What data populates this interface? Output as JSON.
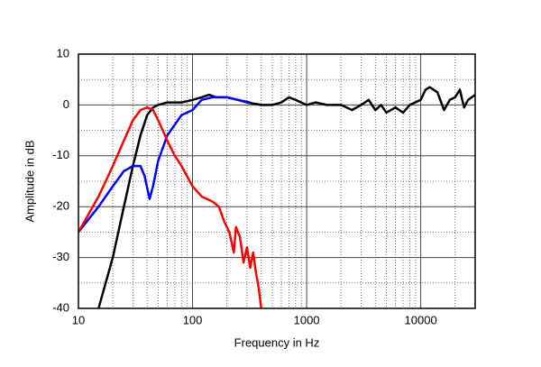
{
  "chart_data": {
    "type": "line",
    "x_label": "Frequency in Hz",
    "y_label": "Amplitude in dB",
    "xscale": "log",
    "grid": true,
    "xlim": [
      10,
      30000
    ],
    "xticks": [
      10,
      100,
      1000,
      10000
    ],
    "ylim": [
      -40,
      10
    ],
    "yticks": [
      -40,
      -30,
      -20,
      -10,
      0,
      10
    ],
    "series": [
      {
        "color": "#000000",
        "x": [
          15,
          20,
          25,
          30,
          35,
          40,
          45,
          50,
          60,
          80,
          100,
          120,
          140,
          160,
          200,
          250,
          300,
          400,
          500,
          600,
          700,
          800,
          1000,
          1200,
          1500,
          2000,
          2500,
          3000,
          3500,
          4000,
          4500,
          5000,
          6000,
          7000,
          8000,
          10000,
          11000,
          12000,
          14000,
          16000,
          18000,
          20000,
          22000,
          24000,
          26000,
          28000,
          30000
        ],
        "values": [
          -40,
          -30,
          -20,
          -12,
          -6,
          -2,
          -0.5,
          0,
          0.5,
          0.5,
          1,
          1.5,
          2,
          1.5,
          1.5,
          1,
          0.5,
          0,
          0,
          0.5,
          1.5,
          1,
          0,
          0.5,
          0,
          0,
          -1,
          0,
          1,
          -1,
          0,
          -1.5,
          -0.5,
          -1.5,
          0,
          1,
          3,
          3.5,
          2.5,
          -1,
          1,
          1.5,
          3,
          -0.5,
          1,
          1.5,
          2
        ]
      },
      {
        "color": "#0000ff",
        "x": [
          10,
          15,
          20,
          25,
          30,
          35,
          38,
          42,
          45,
          50,
          60,
          80,
          100,
          120,
          150,
          200,
          250,
          320
        ],
        "values": [
          -25,
          -20,
          -16,
          -13,
          -12,
          -12,
          -14,
          -18.5,
          -16,
          -11,
          -6,
          -2,
          -1,
          1,
          1.5,
          1.5,
          1,
          0.5
        ]
      },
      {
        "color": "#ff0000",
        "x": [
          10,
          15,
          20,
          25,
          30,
          35,
          40,
          45,
          50,
          60,
          70,
          80,
          100,
          120,
          150,
          170,
          190,
          210,
          230,
          240,
          260,
          280,
          300,
          320,
          340,
          360,
          380,
          400
        ],
        "values": [
          -25,
          -18,
          -12,
          -7,
          -3,
          -1,
          -0.5,
          -1,
          -3,
          -7,
          -10,
          -12,
          -16,
          -18,
          -19,
          -20,
          -23,
          -25,
          -29,
          -24,
          -26,
          -31,
          -28,
          -32,
          -29,
          -33,
          -36,
          -40
        ]
      }
    ]
  }
}
